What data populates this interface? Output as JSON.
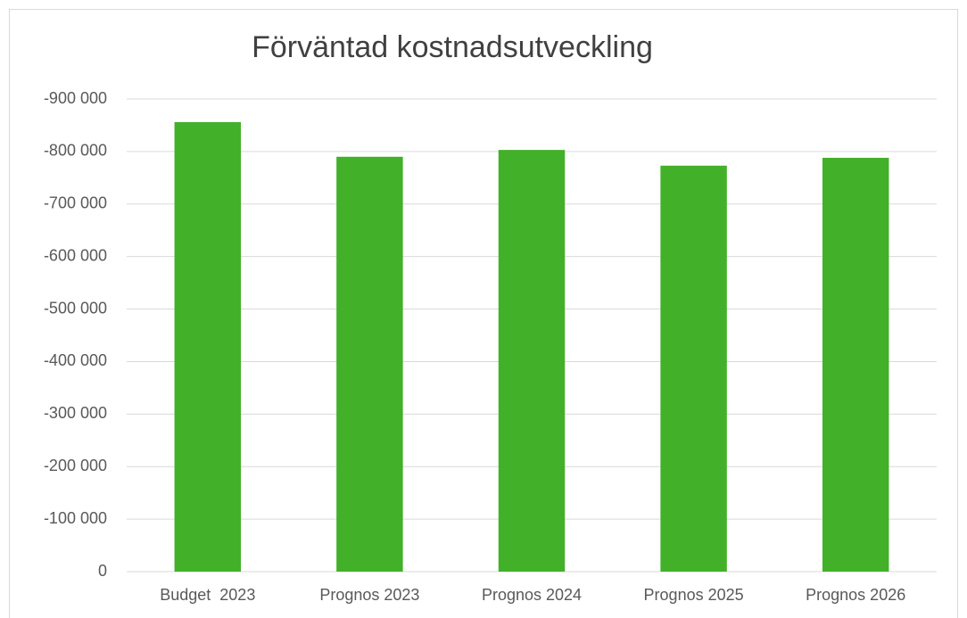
{
  "chart_data": {
    "type": "bar",
    "title": "Förväntad kostnadsutveckling",
    "categories": [
      "Budget  2023",
      "Prognos 2023",
      "Prognos 2024",
      "Prognos 2025",
      "Prognos 2026"
    ],
    "values": [
      -856000,
      -790000,
      -803000,
      -773000,
      -788000
    ],
    "color": "#43b02a",
    "ylim": [
      0,
      -900000
    ],
    "yticks": [
      0,
      {
        "value": -100000,
        "label": "-100 000"
      },
      {
        "value": -200000,
        "label": "-200 000"
      },
      {
        "value": -300000,
        "label": "-300 000"
      },
      {
        "value": -400000,
        "label": "-400 000"
      },
      {
        "value": -500000,
        "label": "-500 000"
      },
      {
        "value": -600000,
        "label": "-600 000"
      },
      {
        "value": -700000,
        "label": "-700 000"
      },
      {
        "value": -800000,
        "label": "-800 000"
      },
      {
        "value": -900000,
        "label": "-900 000"
      }
    ],
    "grid": true
  }
}
